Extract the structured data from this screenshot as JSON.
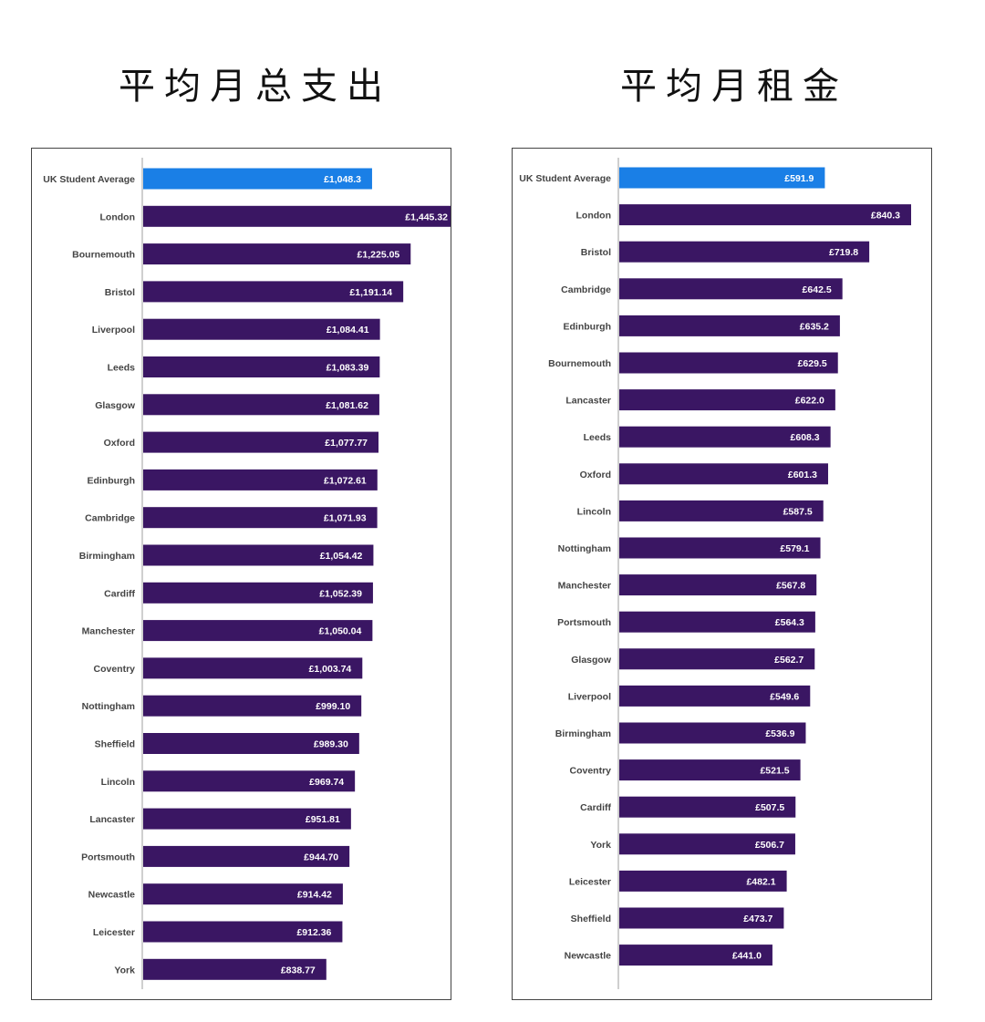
{
  "titles": {
    "left": "平均月总支出",
    "right": "平均月租金"
  },
  "colors": {
    "highlight": "#1a7fe6",
    "bar": "#3a1663",
    "axis": "#cfcfcf"
  },
  "chart_data": [
    {
      "type": "bar",
      "orientation": "horizontal",
      "title": "平均月总支出",
      "categories": [
        "UK Student Average",
        "London",
        "Bournemouth",
        "Bristol",
        "Liverpool",
        "Leeds",
        "Glasgow",
        "Oxford",
        "Edinburgh",
        "Cambridge",
        "Birmingham",
        "Cardiff",
        "Manchester",
        "Coventry",
        "Nottingham",
        "Sheffield",
        "Lincoln",
        "Lancaster",
        "Portsmouth",
        "Newcastle",
        "Leicester",
        "York"
      ],
      "values": [
        1048.3,
        1445.32,
        1225.05,
        1191.14,
        1084.41,
        1083.39,
        1081.62,
        1077.77,
        1072.61,
        1071.93,
        1054.42,
        1052.39,
        1050.04,
        1003.74,
        999.1,
        989.3,
        969.74,
        951.81,
        944.7,
        914.42,
        912.36,
        838.77
      ],
      "value_labels": [
        "£1,048.3",
        "£1,445.32",
        "£1,225.05",
        "£1,191.14",
        "£1,084.41",
        "£1,083.39",
        "£1,081.62",
        "£1,077.77",
        "£1,072.61",
        "£1,071.93",
        "£1,054.42",
        "£1,052.39",
        "£1,050.04",
        "£1,003.74",
        "£999.10",
        "£989.30",
        "£969.74",
        "£951.81",
        "£944.70",
        "£914.42",
        "£912.36",
        "£838.77"
      ],
      "highlight_index": 0,
      "xlim": [
        0,
        1600
      ]
    },
    {
      "type": "bar",
      "orientation": "horizontal",
      "title": "平均月租金",
      "categories": [
        "UK Student Average",
        "London",
        "Bristol",
        "Cambridge",
        "Edinburgh",
        "Bournemouth",
        "Lancaster",
        "Leeds",
        "Oxford",
        "Lincoln",
        "Nottingham",
        "Manchester",
        "Portsmouth",
        "Glasgow",
        "Liverpool",
        "Birmingham",
        "Coventry",
        "Cardiff",
        "York",
        "Leicester",
        "Sheffield",
        "Newcastle"
      ],
      "values": [
        591.9,
        840.3,
        719.8,
        642.5,
        635.2,
        629.5,
        622.0,
        608.3,
        601.3,
        587.5,
        579.1,
        567.8,
        564.3,
        562.7,
        549.6,
        536.9,
        521.5,
        507.5,
        506.7,
        482.1,
        473.7,
        441.0
      ],
      "value_labels": [
        "£591.9",
        "£840.3",
        "£719.8",
        "£642.5",
        "£635.2",
        "£629.5",
        "£622.0",
        "£608.3",
        "£601.3",
        "£587.5",
        "£579.1",
        "£567.8",
        "£564.3",
        "£562.7",
        "£549.6",
        "£536.9",
        "£521.5",
        "£507.5",
        "£506.7",
        "£482.1",
        "£473.7",
        "£441.0"
      ],
      "highlight_index": 0,
      "xlim": [
        0,
        900
      ]
    }
  ]
}
